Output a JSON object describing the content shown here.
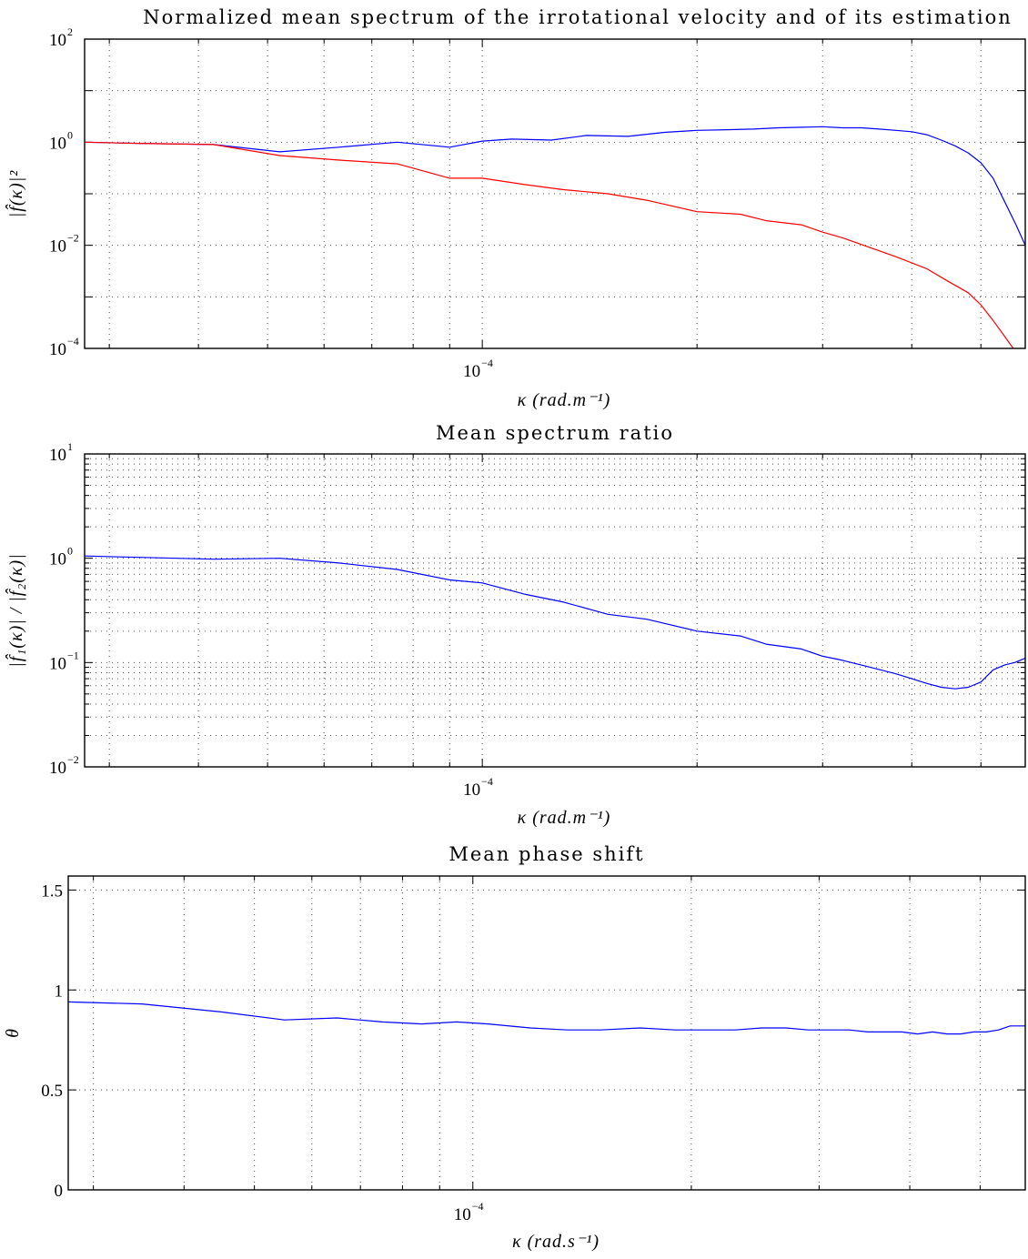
{
  "chart_data": [
    {
      "type": "line",
      "title": "Normalized mean spectrum of the irrotational velocity and of its estimation",
      "xlabel": "κ (rad.m⁻¹)",
      "ylabel": "|f̂(κ)|²",
      "xscale": "log",
      "yscale": "log",
      "xlim": [
        2.77e-05,
        0.000577
      ],
      "ylim": [
        0.0001,
        100
      ],
      "grid": true,
      "xticks": [
        {
          "value": 0.0001,
          "base": "10",
          "exp": "−4"
        }
      ],
      "yticks": [
        {
          "value": 0.0001,
          "base": "10",
          "exp": "−4"
        },
        {
          "value": 0.01,
          "base": "10",
          "exp": "−2"
        },
        {
          "value": 1,
          "base": "10",
          "exp": "0"
        },
        {
          "value": 100,
          "base": "10",
          "exp": "2"
        }
      ],
      "series": [
        {
          "color": "#0000ff",
          "x": [
            2.77e-05,
            3.3e-05,
            4.2e-05,
            5.2e-05,
            6.3e-05,
            7.6e-05,
            9e-05,
            0.0001,
            0.00011,
            0.000125,
            0.00014,
            0.00016,
            0.00018,
            0.0002,
            0.00022,
            0.00024,
            0.00026,
            0.00028,
            0.0003,
            0.00032,
            0.00034,
            0.00036,
            0.00038,
            0.0004,
            0.00042,
            0.00044,
            0.00046,
            0.00048,
            0.0005,
            0.00052,
            0.00054,
            0.00056,
            0.000577
          ],
          "y": [
            1.0,
            0.95,
            0.9,
            0.65,
            0.8,
            1.0,
            0.8,
            1.05,
            1.15,
            1.1,
            1.35,
            1.3,
            1.55,
            1.7,
            1.75,
            1.8,
            1.9,
            1.95,
            2.0,
            1.9,
            1.9,
            1.8,
            1.7,
            1.6,
            1.4,
            1.1,
            0.85,
            0.62,
            0.4,
            0.2,
            0.07,
            0.025,
            0.01
          ]
        },
        {
          "color": "#ff0000",
          "x": [
            2.77e-05,
            3.3e-05,
            4.2e-05,
            5.2e-05,
            6.3e-05,
            7.6e-05,
            9e-05,
            0.0001,
            0.000115,
            0.00013,
            0.00015,
            0.00017,
            0.0002,
            0.00023,
            0.00025,
            0.00028,
            0.0003,
            0.00032,
            0.00035,
            0.00038,
            0.00042,
            0.00045,
            0.00048,
            0.0005,
            0.00052,
            0.00054,
            0.000555
          ],
          "y": [
            1.0,
            0.95,
            0.9,
            0.55,
            0.45,
            0.38,
            0.2,
            0.2,
            0.15,
            0.12,
            0.1,
            0.075,
            0.045,
            0.04,
            0.03,
            0.025,
            0.018,
            0.014,
            0.009,
            0.006,
            0.0035,
            0.002,
            0.0012,
            0.0007,
            0.00035,
            0.00017,
            0.0001
          ]
        }
      ]
    },
    {
      "type": "line",
      "title": "Mean spectrum ratio",
      "xlabel": "κ (rad.m⁻¹)",
      "ylabel": "|f̂₁(κ)| / |f̂₂(κ)|",
      "xscale": "log",
      "yscale": "log",
      "xlim": [
        2.77e-05,
        0.000577
      ],
      "ylim": [
        0.01,
        10
      ],
      "grid": true,
      "xticks": [
        {
          "value": 0.0001,
          "base": "10",
          "exp": "−4"
        }
      ],
      "yticks": [
        {
          "value": 0.01,
          "base": "10",
          "exp": "−2"
        },
        {
          "value": 0.1,
          "base": "10",
          "exp": "−1"
        },
        {
          "value": 1,
          "base": "10",
          "exp": "0"
        },
        {
          "value": 10,
          "base": "10",
          "exp": "1"
        }
      ],
      "series": [
        {
          "color": "#0000ff",
          "x": [
            2.77e-05,
            3.3e-05,
            4.2e-05,
            5.2e-05,
            6.3e-05,
            7.6e-05,
            9e-05,
            0.0001,
            0.000115,
            0.00013,
            0.00015,
            0.00017,
            0.0002,
            0.00023,
            0.00025,
            0.00028,
            0.0003,
            0.00032,
            0.00035,
            0.00038,
            0.0004,
            0.00042,
            0.00044,
            0.00046,
            0.00048,
            0.0005,
            0.00052,
            0.00054,
            0.0005577,
            0.000577
          ],
          "y": [
            1.05,
            1.02,
            0.98,
            1.0,
            0.9,
            0.78,
            0.62,
            0.58,
            0.45,
            0.38,
            0.29,
            0.26,
            0.2,
            0.18,
            0.15,
            0.135,
            0.115,
            0.105,
            0.09,
            0.078,
            0.07,
            0.063,
            0.058,
            0.056,
            0.058,
            0.065,
            0.085,
            0.095,
            0.1,
            0.11
          ]
        }
      ]
    },
    {
      "type": "line",
      "title": "Mean phase shift",
      "xlabel": "κ (rad.s⁻¹)",
      "ylabel": "θ",
      "xscale": "log",
      "yscale": "linear",
      "xlim": [
        2.77e-05,
        0.000577
      ],
      "ylim": [
        0,
        1.57
      ],
      "grid": true,
      "xticks": [
        {
          "value": 0.0001,
          "base": "10",
          "exp": "−4"
        }
      ],
      "yticks": [
        {
          "value": 0,
          "label": "0"
        },
        {
          "value": 0.5,
          "label": "0.5"
        },
        {
          "value": 1,
          "label": "1"
        },
        {
          "value": 1.5,
          "label": "1.5"
        }
      ],
      "series": [
        {
          "color": "#0000ff",
          "x": [
            2.77e-05,
            3.5e-05,
            4.5e-05,
            5.5e-05,
            6.5e-05,
            7.5e-05,
            8.5e-05,
            9.5e-05,
            0.000105,
            0.00012,
            0.000135,
            0.00015,
            0.00017,
            0.00019,
            0.00021,
            0.00023,
            0.00025,
            0.00027,
            0.00029,
            0.00031,
            0.00033,
            0.00035,
            0.00037,
            0.00039,
            0.00041,
            0.00043,
            0.00045,
            0.00047,
            0.00049,
            0.00051,
            0.00053,
            0.00055,
            0.000577
          ],
          "y": [
            0.94,
            0.93,
            0.89,
            0.85,
            0.86,
            0.84,
            0.83,
            0.84,
            0.83,
            0.81,
            0.8,
            0.8,
            0.81,
            0.8,
            0.8,
            0.8,
            0.81,
            0.81,
            0.8,
            0.8,
            0.8,
            0.79,
            0.79,
            0.79,
            0.78,
            0.79,
            0.78,
            0.78,
            0.79,
            0.79,
            0.8,
            0.82,
            0.82
          ]
        }
      ]
    }
  ]
}
